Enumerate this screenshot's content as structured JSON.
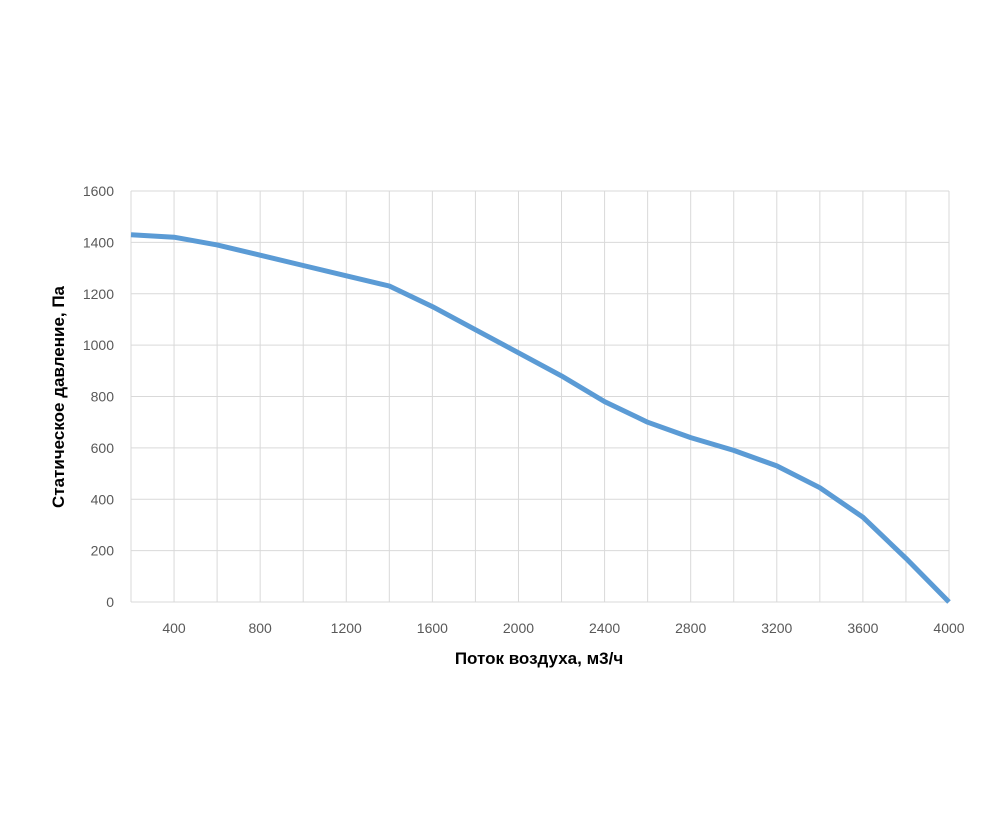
{
  "chart_data": {
    "type": "line",
    "title": "",
    "xlabel": "Поток воздуха, м3/ч",
    "ylabel": "Статическое давление, Па",
    "xlim": [
      200,
      4000
    ],
    "ylim": [
      0,
      1600
    ],
    "x_ticks": [
      400,
      800,
      1200,
      1600,
      2000,
      2400,
      2800,
      3200,
      3600,
      4000
    ],
    "x_gridlines": [
      200,
      400,
      600,
      800,
      1000,
      1200,
      1400,
      1600,
      1800,
      2000,
      2200,
      2400,
      2600,
      2800,
      3000,
      3200,
      3400,
      3600,
      3800,
      4000
    ],
    "y_ticks": [
      0,
      200,
      400,
      600,
      800,
      1000,
      1200,
      1400,
      1600
    ],
    "grid": true,
    "legend": "none",
    "series": [
      {
        "color": "#5b9bd5",
        "x": [
          200,
          400,
          600,
          800,
          1000,
          1200,
          1400,
          1600,
          1800,
          2000,
          2200,
          2400,
          2600,
          2800,
          3000,
          3200,
          3400,
          3600,
          3800,
          4000
        ],
        "y": [
          1430,
          1420,
          1390,
          1350,
          1310,
          1270,
          1230,
          1150,
          1060,
          970,
          880,
          780,
          700,
          640,
          590,
          530,
          445,
          330,
          170,
          0
        ]
      }
    ]
  }
}
